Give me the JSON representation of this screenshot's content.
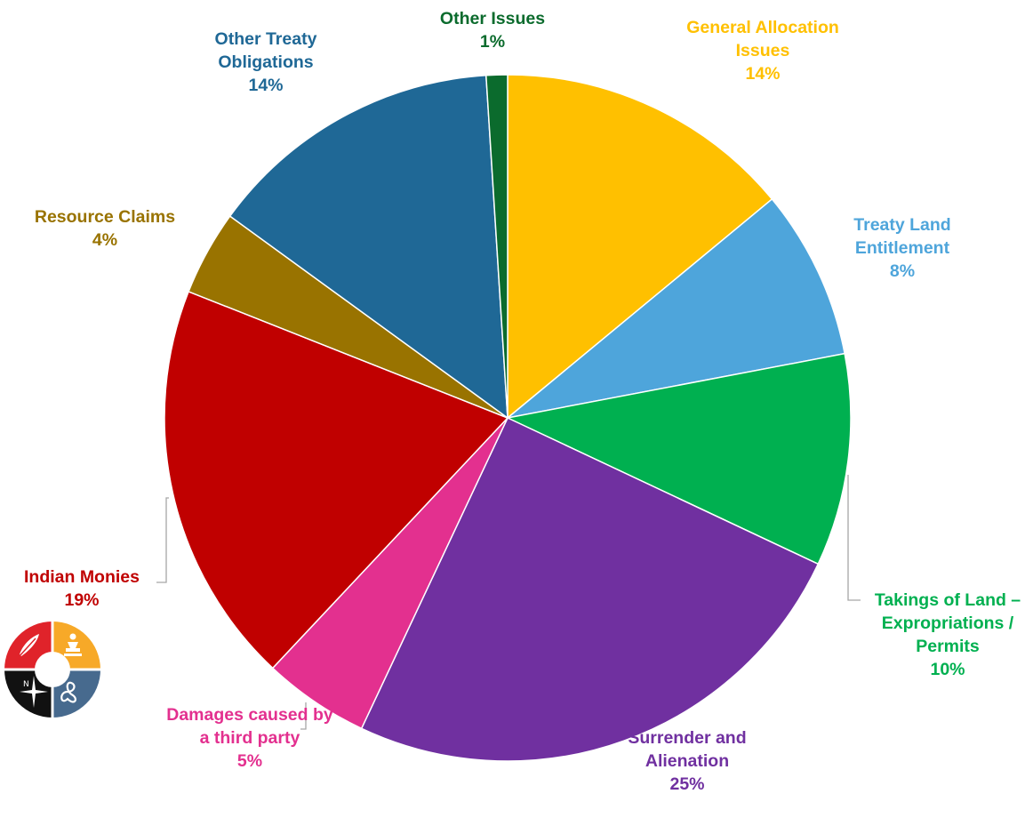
{
  "chart_data": {
    "type": "pie",
    "title": "",
    "start_angle_deg": 0,
    "direction": "clockwise",
    "slices": [
      {
        "label_lines": [
          "General Allocation",
          "Issues"
        ],
        "value": 14,
        "value_label": "14%",
        "color": "#FFC000",
        "label_color": "#FFC000"
      },
      {
        "label_lines": [
          "Treaty Land",
          "Entitlement"
        ],
        "value": 8,
        "value_label": "8%",
        "color": "#4EA5DB",
        "label_color": "#4EA5DB"
      },
      {
        "label_lines": [
          "Takings of Land –",
          "Expropriations /",
          "Permits"
        ],
        "value": 10,
        "value_label": "10%",
        "color": "#00B050",
        "label_color": "#00B050"
      },
      {
        "label_lines": [
          "Surrender and",
          "Alienation"
        ],
        "value": 25,
        "value_label": "25%",
        "color": "#7030A0",
        "label_color": "#7030A0"
      },
      {
        "label_lines": [
          "Damages caused by",
          "a third party"
        ],
        "value": 5,
        "value_label": "5%",
        "color": "#E3308F",
        "label_color": "#E3308F"
      },
      {
        "label_lines": [
          "Indian Monies"
        ],
        "value": 19,
        "value_label": "19%",
        "color": "#C00000",
        "label_color": "#C00000"
      },
      {
        "label_lines": [
          "Resource Claims"
        ],
        "value": 4,
        "value_label": "4%",
        "color": "#997300",
        "label_color": "#997300"
      },
      {
        "label_lines": [
          "Other Treaty",
          "Obligations"
        ],
        "value": 14,
        "value_label": "14%",
        "color": "#1F6896",
        "label_color": "#1F6896"
      },
      {
        "label_lines": [
          "Other Issues"
        ],
        "value": 1,
        "value_label": "1%",
        "color": "#0B6B2D",
        "label_color": "#0B6B2D"
      }
    ]
  },
  "logo": {
    "icons": [
      "feather-icon",
      "person-icon",
      "compass-star-icon",
      "infinity-icon"
    ],
    "colors": [
      "#E0232A",
      "#F7A928",
      "#111111",
      "#476A8E"
    ]
  }
}
